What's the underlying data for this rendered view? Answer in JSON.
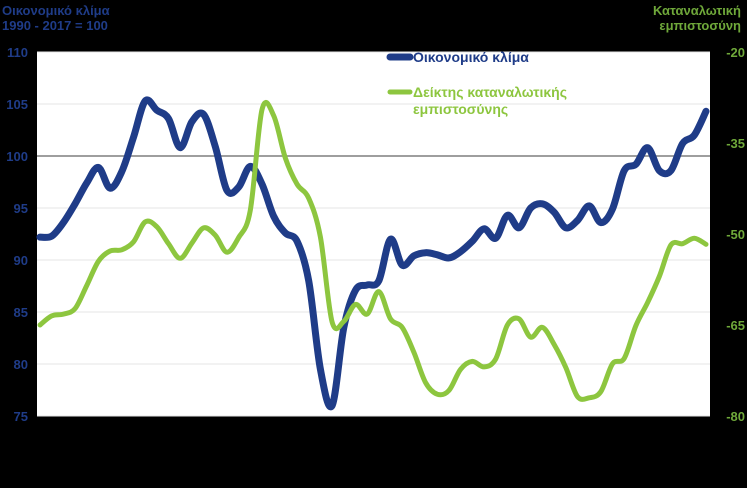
{
  "chart_data": {
    "type": "line",
    "left_axis": {
      "title_line1": "Οικονομικό κλίμα",
      "title_line2": "1990 - 2017 = 100",
      "ylim": [
        75,
        110
      ],
      "ticks": [
        75,
        80,
        85,
        90,
        95,
        100,
        105,
        110
      ],
      "reference_line": 100,
      "color": "#1F3C88"
    },
    "right_axis": {
      "title_line1": "Καταναλωτική",
      "title_line2": "εμπιστοσύνη",
      "ylim": [
        -80,
        -20
      ],
      "ticks": [
        -80,
        -65,
        -50,
        -35,
        -20
      ],
      "color": "#6FA83A"
    },
    "grid": true,
    "legend_position": "top-center",
    "series": [
      {
        "name": "Οικονομικό κλίμα",
        "axis": "left",
        "color": "#1F3C88",
        "values": [
          92.2,
          92.3,
          93.6,
          95.4,
          97.4,
          98.9,
          96.9,
          98.5,
          101.8,
          105.3,
          104.4,
          103.6,
          100.8,
          103.3,
          104.0,
          100.9,
          96.7,
          97.0,
          99.0,
          97.3,
          94.2,
          92.6,
          91.8,
          88.0,
          79.5,
          76.0,
          83.5,
          87.1,
          87.6,
          88.0,
          92.0,
          89.5,
          90.4,
          90.7,
          90.5,
          90.2,
          90.8,
          91.8,
          93.0,
          92.1,
          94.3,
          93.1,
          95.0,
          95.4,
          94.6,
          93.1,
          93.8,
          95.2,
          93.6,
          94.9,
          98.6,
          99.2,
          100.8,
          98.6,
          98.6,
          101.2,
          102.0,
          104.3
        ]
      },
      {
        "name": "Δείκτης καταναλωτικής εμπιστοσύνης",
        "axis": "right",
        "color": "#8DC63F",
        "values": [
          -65.0,
          -63.5,
          -63.2,
          -62.3,
          -58.5,
          -54.5,
          -52.8,
          -52.6,
          -51.3,
          -48.0,
          -48.8,
          -51.6,
          -54.0,
          -51.5,
          -49.0,
          -50.2,
          -53.0,
          -50.6,
          -46.1,
          -29.5,
          -30.5,
          -37.5,
          -41.8,
          -44.1,
          -50.5,
          -64.5,
          -64.4,
          -61.6,
          -63.2,
          -59.5,
          -64.0,
          -65.4,
          -69.5,
          -74.5,
          -76.4,
          -75.8,
          -72.3,
          -71.0,
          -71.9,
          -70.6,
          -65.0,
          -64.0,
          -67.0,
          -65.4,
          -68.2,
          -72.0,
          -76.8,
          -77.0,
          -76.0,
          -71.4,
          -70.5,
          -65.1,
          -61.3,
          -57.0,
          -51.8,
          -51.6,
          -50.7,
          -51.7
        ]
      }
    ]
  }
}
